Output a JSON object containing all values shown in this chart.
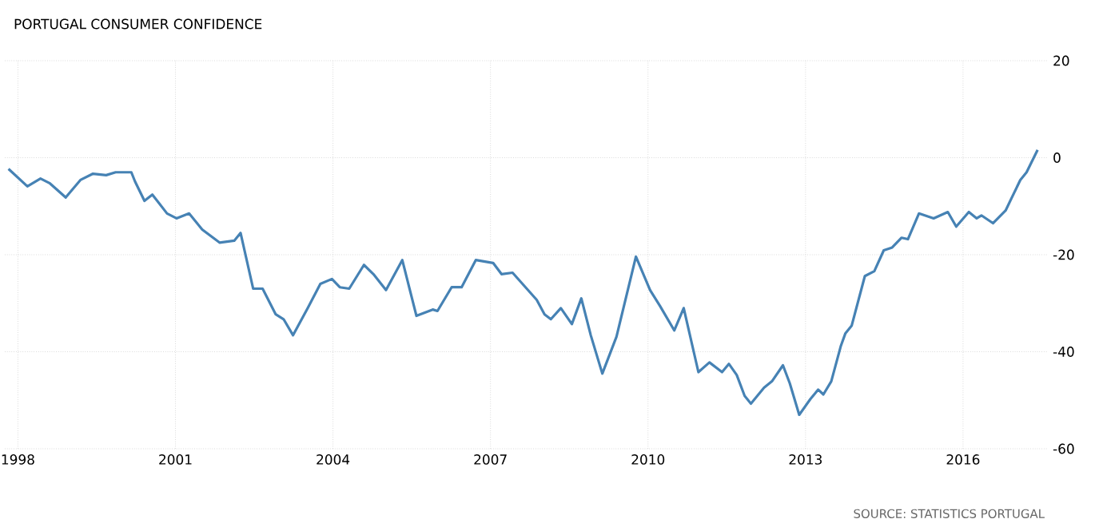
{
  "chart_data": {
    "type": "line",
    "title": "PORTUGAL CONSUMER CONFIDENCE",
    "annotations": [
      "SOURCE: STATISTICS PORTUGAL"
    ],
    "x": [
      1997.82,
      1998.18,
      1998.43,
      1998.61,
      1998.91,
      1999.19,
      1999.43,
      1999.68,
      1999.86,
      2000.16,
      2000.23,
      2000.41,
      2000.56,
      2000.84,
      2001.02,
      2001.26,
      2001.51,
      2001.84,
      2002.12,
      2002.24,
      2002.48,
      2002.66,
      2002.91,
      2003.06,
      2003.24,
      2003.52,
      2003.76,
      2003.98,
      2004.13,
      2004.31,
      2004.59,
      2004.77,
      2005.01,
      2005.32,
      2005.59,
      2005.9,
      2005.99,
      2006.26,
      2006.45,
      2006.72,
      2007.05,
      2007.21,
      2007.42,
      2007.88,
      2008.03,
      2008.15,
      2008.34,
      2008.55,
      2008.73,
      2008.91,
      2009.13,
      2009.4,
      2009.77,
      2010.04,
      2010.23,
      2010.5,
      2010.68,
      2010.96,
      2011.17,
      2011.41,
      2011.54,
      2011.69,
      2011.84,
      2011.96,
      2012.21,
      2012.36,
      2012.57,
      2012.7,
      2012.88,
      2013.09,
      2013.24,
      2013.34,
      2013.49,
      2013.67,
      2013.76,
      2013.88,
      2014.13,
      2014.31,
      2014.49,
      2014.65,
      2014.83,
      2014.95,
      2015.16,
      2015.44,
      2015.71,
      2015.87,
      2016.11,
      2016.26,
      2016.35,
      2016.57,
      2016.81,
      2017.09,
      2017.21,
      2017.42
    ],
    "series": [
      {
        "color": "#4682b4",
        "values": [
          -2.3,
          -5.9,
          -4.3,
          -5.3,
          -8.2,
          -4.6,
          -3.3,
          -3.6,
          -3.0,
          -3.0,
          -4.9,
          -8.9,
          -7.6,
          -11.5,
          -12.5,
          -11.5,
          -14.8,
          -17.5,
          -17.1,
          -15.5,
          -27.0,
          -27.0,
          -32.3,
          -33.3,
          -36.6,
          -31.0,
          -26.0,
          -25.0,
          -26.7,
          -27.0,
          -22.1,
          -24.0,
          -27.3,
          -21.1,
          -32.6,
          -31.3,
          -31.6,
          -26.7,
          -26.7,
          -21.1,
          -21.7,
          -24.0,
          -23.7,
          -29.3,
          -32.3,
          -33.3,
          -31.0,
          -34.3,
          -29.0,
          -36.6,
          -44.5,
          -36.9,
          -20.4,
          -27.3,
          -30.6,
          -35.6,
          -31.0,
          -44.2,
          -42.2,
          -44.2,
          -42.5,
          -44.8,
          -49.1,
          -50.7,
          -47.4,
          -46.1,
          -42.8,
          -46.5,
          -53.0,
          -49.8,
          -47.8,
          -48.8,
          -46.1,
          -38.9,
          -36.2,
          -34.6,
          -24.4,
          -23.4,
          -19.1,
          -18.5,
          -16.5,
          -16.8,
          -11.5,
          -12.5,
          -11.2,
          -14.2,
          -11.2,
          -12.5,
          -11.9,
          -13.5,
          -10.9,
          -4.6,
          -3.0,
          1.6
        ]
      }
    ],
    "xlim": [
      1997.75,
      2017.6
    ],
    "xticks": [
      1998,
      2001,
      2004,
      2007,
      2010,
      2013,
      2016
    ],
    "ylim": [
      -60,
      20
    ],
    "yticks": [
      -60,
      -40,
      -20,
      0,
      20
    ],
    "grid": true,
    "line_style": "solid"
  }
}
